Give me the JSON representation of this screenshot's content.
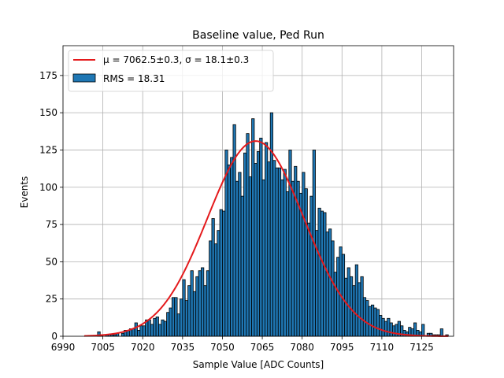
{
  "chart_data": {
    "type": "bar",
    "title": "Baseline value, Ped Run",
    "xlabel": "Sample Value [ADC Counts]",
    "ylabel": "Events",
    "xlim": [
      6990,
      7137
    ],
    "ylim": [
      0,
      195
    ],
    "xticks": [
      6990,
      7005,
      7020,
      7035,
      7050,
      7065,
      7080,
      7095,
      7110,
      7125
    ],
    "yticks": [
      0,
      25,
      50,
      75,
      100,
      125,
      150,
      175
    ],
    "grid": true,
    "legend_position": "top-left",
    "legend": {
      "fit_label": "μ = 7062.5±0.3, σ = 18.1±0.3",
      "hist_label": "RMS = 18.31"
    },
    "colors": {
      "bars": "#1f77b4",
      "fit": "#e41a1c"
    },
    "histogram": {
      "bin_start": 6998,
      "bin_width": 1,
      "counts": [
        0,
        0,
        0,
        0,
        0,
        3,
        1,
        0,
        1,
        1,
        1,
        1,
        2,
        0,
        2,
        4,
        4,
        5,
        5,
        9,
        4,
        7,
        7,
        11,
        11,
        8,
        12,
        13,
        8,
        11,
        10,
        16,
        19,
        26,
        26,
        15,
        25,
        38,
        24,
        34,
        44,
        30,
        40,
        44,
        46,
        34,
        44,
        64,
        79,
        62,
        71,
        85,
        84,
        125,
        115,
        120,
        142,
        104,
        110,
        94,
        123,
        136,
        107,
        146,
        116,
        124,
        133,
        105,
        130,
        117,
        150,
        118,
        113,
        113,
        105,
        112,
        97,
        125,
        104,
        114,
        104,
        96,
        110,
        99,
        76,
        94,
        125,
        71,
        86,
        84,
        83,
        70,
        72,
        64,
        43,
        53,
        60,
        55,
        39,
        46,
        40,
        34,
        48,
        36,
        40,
        26,
        24,
        20,
        21,
        19,
        18,
        14,
        12,
        10,
        12,
        9,
        7,
        8,
        10,
        7,
        4,
        3,
        6,
        5,
        9,
        4,
        3,
        8,
        0,
        2,
        2,
        1,
        1,
        1,
        5,
        0,
        1,
        0,
        0,
        0,
        0,
        0,
        0,
        0
      ],
      "rms": 18.31
    },
    "fit": {
      "model": "gaussian",
      "mu": 7062.5,
      "sigma": 18.1,
      "amplitude": 131,
      "x_range": [
        6998,
        7135
      ]
    }
  }
}
